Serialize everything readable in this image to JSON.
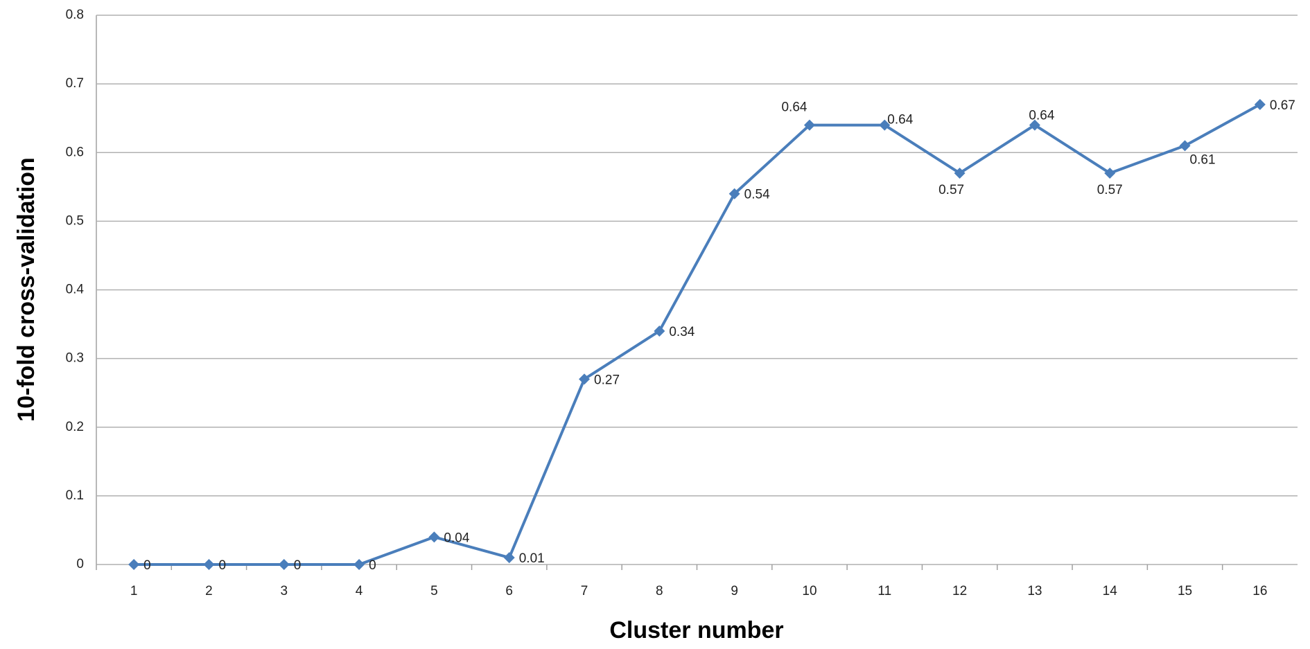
{
  "chart_data": {
    "type": "line",
    "x_label": "Cluster number",
    "y_label": "10-fold cross-validation",
    "categories": [
      "1",
      "2",
      "3",
      "4",
      "5",
      "6",
      "7",
      "8",
      "9",
      "10",
      "11",
      "12",
      "13",
      "14",
      "15",
      "16"
    ],
    "series": [
      {
        "color": "#4a7ebb",
        "values": [
          0,
          0,
          0,
          0,
          0.04,
          0.01,
          0.27,
          0.34,
          0.54,
          0.64,
          0.64,
          0.57,
          0.64,
          0.57,
          0.61,
          0.67
        ]
      }
    ],
    "ylim": [
      0,
      0.8
    ],
    "yticks": [
      0,
      0.1,
      0.2,
      0.3,
      0.4,
      0.5,
      0.6,
      0.7,
      0.8
    ],
    "grid": true
  }
}
